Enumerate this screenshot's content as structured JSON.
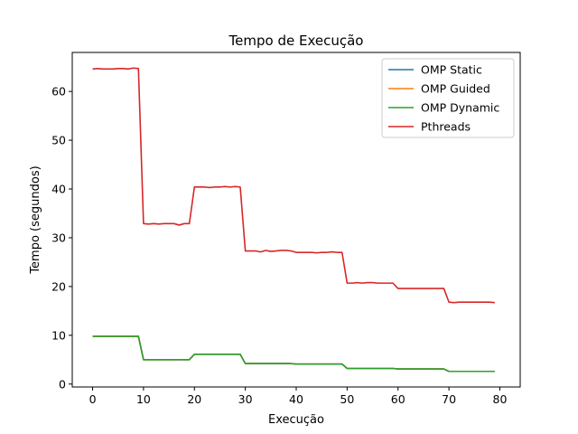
{
  "chart_data": {
    "type": "line",
    "title": "Tempo de Execução",
    "xlabel": "Execução",
    "ylabel": "Tempo (segundos)",
    "xlim": [
      -4,
      84
    ],
    "ylim": [
      -0.6,
      68
    ],
    "xticks": [
      0,
      10,
      20,
      30,
      40,
      50,
      60,
      70,
      80
    ],
    "yticks": [
      0,
      10,
      20,
      30,
      40,
      50,
      60
    ],
    "grid": false,
    "legend": "top-right",
    "x_range": [
      0,
      79
    ],
    "series": [
      {
        "name": "OMP Static",
        "color": "#1f77b4",
        "values": [
          9.8,
          9.8,
          9.8,
          9.8,
          9.8,
          9.8,
          9.8,
          9.8,
          9.8,
          9.8,
          5.0,
          5.0,
          5.0,
          5.0,
          5.0,
          5.0,
          5.0,
          5.0,
          5.0,
          5.0,
          6.1,
          6.1,
          6.1,
          6.1,
          6.1,
          6.1,
          6.1,
          6.1,
          6.1,
          6.1,
          4.2,
          4.2,
          4.2,
          4.2,
          4.2,
          4.2,
          4.2,
          4.2,
          4.2,
          4.2,
          4.1,
          4.1,
          4.1,
          4.1,
          4.1,
          4.1,
          4.1,
          4.1,
          4.1,
          4.1,
          3.2,
          3.2,
          3.2,
          3.2,
          3.2,
          3.2,
          3.2,
          3.2,
          3.2,
          3.2,
          3.1,
          3.1,
          3.1,
          3.1,
          3.1,
          3.1,
          3.1,
          3.1,
          3.1,
          3.1,
          2.6,
          2.6,
          2.6,
          2.6,
          2.6,
          2.6,
          2.6,
          2.6,
          2.6,
          2.6
        ]
      },
      {
        "name": "OMP Guided",
        "color": "#ff7f0e",
        "values": [
          9.8,
          9.8,
          9.8,
          9.8,
          9.8,
          9.8,
          9.8,
          9.8,
          9.8,
          9.8,
          5.0,
          5.0,
          5.0,
          5.0,
          5.0,
          5.0,
          5.0,
          5.0,
          5.0,
          5.0,
          6.1,
          6.1,
          6.1,
          6.1,
          6.1,
          6.1,
          6.1,
          6.1,
          6.1,
          6.1,
          4.2,
          4.2,
          4.2,
          4.2,
          4.2,
          4.2,
          4.2,
          4.2,
          4.2,
          4.2,
          4.1,
          4.1,
          4.1,
          4.1,
          4.1,
          4.1,
          4.1,
          4.1,
          4.1,
          4.1,
          3.2,
          3.2,
          3.2,
          3.2,
          3.2,
          3.2,
          3.2,
          3.2,
          3.2,
          3.2,
          3.1,
          3.1,
          3.1,
          3.1,
          3.1,
          3.1,
          3.1,
          3.1,
          3.1,
          3.1,
          2.6,
          2.6,
          2.6,
          2.6,
          2.6,
          2.6,
          2.6,
          2.6,
          2.6,
          2.6
        ]
      },
      {
        "name": "OMP Dynamic",
        "color": "#2ca02c",
        "values": [
          9.8,
          9.8,
          9.8,
          9.8,
          9.8,
          9.8,
          9.8,
          9.8,
          9.8,
          9.8,
          5.0,
          5.0,
          5.0,
          5.0,
          5.0,
          5.0,
          5.0,
          5.0,
          5.0,
          5.0,
          6.1,
          6.1,
          6.1,
          6.1,
          6.1,
          6.1,
          6.1,
          6.1,
          6.1,
          6.1,
          4.2,
          4.2,
          4.2,
          4.2,
          4.2,
          4.2,
          4.2,
          4.2,
          4.2,
          4.2,
          4.1,
          4.1,
          4.1,
          4.1,
          4.1,
          4.1,
          4.1,
          4.1,
          4.1,
          4.1,
          3.2,
          3.2,
          3.2,
          3.2,
          3.2,
          3.2,
          3.2,
          3.2,
          3.2,
          3.2,
          3.1,
          3.1,
          3.1,
          3.1,
          3.1,
          3.1,
          3.1,
          3.1,
          3.1,
          3.1,
          2.6,
          2.6,
          2.6,
          2.6,
          2.6,
          2.6,
          2.6,
          2.6,
          2.6,
          2.6
        ]
      },
      {
        "name": "Pthreads",
        "color": "#d62728",
        "values": [
          64.6,
          64.7,
          64.6,
          64.6,
          64.6,
          64.7,
          64.7,
          64.6,
          64.8,
          64.7,
          32.9,
          32.8,
          32.9,
          32.8,
          32.9,
          32.9,
          32.9,
          32.6,
          32.9,
          32.9,
          40.4,
          40.4,
          40.4,
          40.3,
          40.4,
          40.4,
          40.5,
          40.4,
          40.5,
          40.4,
          27.3,
          27.3,
          27.3,
          27.1,
          27.4,
          27.2,
          27.3,
          27.4,
          27.4,
          27.3,
          27.0,
          27.0,
          27.0,
          27.0,
          26.9,
          27.0,
          27.0,
          27.1,
          27.0,
          27.0,
          20.7,
          20.7,
          20.8,
          20.7,
          20.8,
          20.8,
          20.7,
          20.7,
          20.7,
          20.7,
          19.6,
          19.6,
          19.6,
          19.6,
          19.6,
          19.6,
          19.6,
          19.6,
          19.6,
          19.6,
          16.8,
          16.7,
          16.8,
          16.8,
          16.8,
          16.8,
          16.8,
          16.8,
          16.8,
          16.7
        ]
      }
    ]
  }
}
